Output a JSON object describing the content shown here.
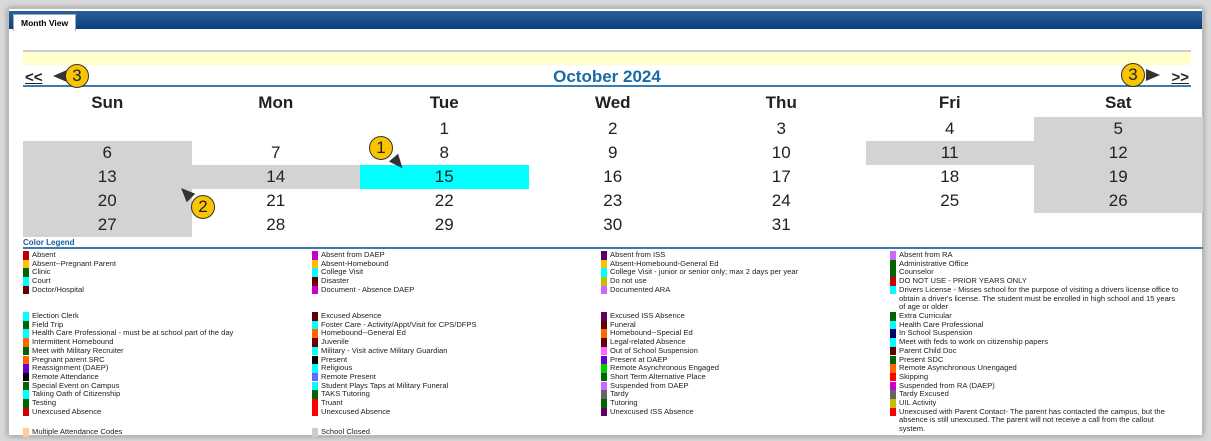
{
  "tab": {
    "label": "Month View"
  },
  "nav": {
    "prev": "<<",
    "next": ">>",
    "month": "October 2024"
  },
  "calendar": {
    "days": [
      "Sun",
      "Mon",
      "Tue",
      "Wed",
      "Thu",
      "Fri",
      "Sat"
    ],
    "weeks": [
      [
        {
          "d": ""
        },
        {
          "d": ""
        },
        {
          "d": "1"
        },
        {
          "d": "2"
        },
        {
          "d": "3"
        },
        {
          "d": "4"
        },
        {
          "d": "5",
          "s": "closed"
        }
      ],
      [
        {
          "d": "6",
          "s": "closed"
        },
        {
          "d": "7"
        },
        {
          "d": "8"
        },
        {
          "d": "9"
        },
        {
          "d": "10"
        },
        {
          "d": "11",
          "s": "closed"
        },
        {
          "d": "12",
          "s": "closed"
        }
      ],
      [
        {
          "d": "13",
          "s": "closed"
        },
        {
          "d": "14",
          "s": "closed"
        },
        {
          "d": "15",
          "s": "selected"
        },
        {
          "d": "16"
        },
        {
          "d": "17"
        },
        {
          "d": "18"
        },
        {
          "d": "19",
          "s": "closed"
        }
      ],
      [
        {
          "d": "20",
          "s": "closed"
        },
        {
          "d": "21"
        },
        {
          "d": "22"
        },
        {
          "d": "23"
        },
        {
          "d": "24"
        },
        {
          "d": "25"
        },
        {
          "d": "26",
          "s": "closed"
        }
      ],
      [
        {
          "d": "27",
          "s": "closed"
        },
        {
          "d": "28"
        },
        {
          "d": "29"
        },
        {
          "d": "30"
        },
        {
          "d": "31"
        },
        {
          "d": ""
        },
        {
          "d": ""
        }
      ]
    ],
    "colors": {
      "closed": "#d3d3d3",
      "selected": "#00ffff"
    }
  },
  "callouts": [
    "1",
    "2",
    "3",
    "3"
  ],
  "legend": {
    "title": "Color Legend",
    "groups": [
      [
        [
          [
            "Absent",
            "#c00000"
          ],
          [
            "Absent--Pregnant Parent",
            "#ffc000"
          ],
          [
            "Clinic",
            "#006400"
          ],
          [
            "Court",
            "#00ffff"
          ],
          [
            "Doctor/Hospital",
            "#600000"
          ]
        ],
        [
          [
            "Absent from DAEP",
            "#cc00cc"
          ],
          [
            "Absent-Homebound",
            "#ffc000"
          ],
          [
            "College Visit",
            "#00ffff"
          ],
          [
            "Disaster",
            "#600000"
          ],
          [
            "Document - Absence DAEP",
            "#cc00cc"
          ]
        ],
        [
          [
            "Absent from ISS",
            "#600060"
          ],
          [
            "Absent-Homebound-General Ed",
            "#ffc000"
          ],
          [
            "College Visit - junior or senior only; max 2 days per year",
            "#00ffff"
          ],
          [
            "Do not use",
            "#c0c000"
          ],
          [
            "Documented ARA",
            "#cc66ff"
          ]
        ],
        [
          [
            "Absent from RA",
            "#cc66ff"
          ],
          [
            "Administrative Office",
            "#006400"
          ],
          [
            "Counselor",
            "#006400"
          ],
          [
            "DO NOT USE - PRIOR YEARS ONLY",
            "#cc0000"
          ],
          [
            "Drivers License - Misses school for the purpose of visiting a drivers license office to obtain a driver's license. The student must be enrolled in high school and 15 years of age or older",
            "#00ffff"
          ]
        ]
      ],
      [
        [
          [
            "Election Clerk",
            "#00ffff"
          ],
          [
            "Field Trip",
            "#006400"
          ],
          [
            "Health Care Professional - must be at school part of the day",
            "#00ffff"
          ],
          [
            "Intermittent Homebound",
            "#ff6600"
          ],
          [
            "Meet with Military Recruiter",
            "#006400"
          ],
          [
            "Pregnant parent SRC",
            "#ff6600"
          ],
          [
            "Reassignment (DAEP)",
            "#6600cc"
          ],
          [
            "Remote Attendance",
            "#000000"
          ],
          [
            "Special Event on Campus",
            "#006400"
          ],
          [
            "Taking Oath of Citizenship",
            "#00ffff"
          ],
          [
            "Testing",
            "#006400"
          ],
          [
            "Unexcused Absence",
            "#cc0000"
          ]
        ],
        [
          [
            "Excused Absence",
            "#600000"
          ],
          [
            "Foster Care - Activity/Appt/Visit for CPS/DFPS",
            "#00ffff"
          ],
          [
            "Homebound--General Ed",
            "#ff6600"
          ],
          [
            "Juvenile",
            "#600000"
          ],
          [
            "Military - Visit active Military Guardian",
            "#00ffff"
          ],
          [
            "Present",
            "#000000"
          ],
          [
            "Religious",
            "#00ffff"
          ],
          [
            "Remote Present",
            "#6666ff"
          ],
          [
            "Student Plays Taps at Military Funeral",
            "#00ffff"
          ],
          [
            "TAKS Tutoring",
            "#006400"
          ],
          [
            "Truant",
            "#ff0000"
          ],
          [
            "Unexcused Absence",
            "#ff0000"
          ]
        ],
        [
          [
            "Excused ISS Absence",
            "#600060"
          ],
          [
            "Funeral",
            "#600000"
          ],
          [
            "Homebound--Special Ed",
            "#ff6600"
          ],
          [
            "Legal-related Absence",
            "#600000"
          ],
          [
            "Out of School Suspension",
            "#ff66ff"
          ],
          [
            "Present at DAEP",
            "#6600cc"
          ],
          [
            "Remote Asynchronous Engaged",
            "#00cc00"
          ],
          [
            "Short Term Alternative Place",
            "#006400"
          ],
          [
            "Suspended from DAEP",
            "#cc66ff"
          ],
          [
            "Tardy",
            "#666666"
          ],
          [
            "Tutoring",
            "#006400"
          ],
          [
            "Unexcused ISS Absence",
            "#600060"
          ]
        ],
        [
          [
            "Extra Curricular",
            "#006400"
          ],
          [
            "Health Care Professional",
            "#00ffff"
          ],
          [
            "In School Suspension",
            "#000066"
          ],
          [
            "Meet with feds to work on citizenship papers",
            "#00ffff"
          ],
          [
            "Parent Child Doc",
            "#600000"
          ],
          [
            "Present SDC",
            "#006400"
          ],
          [
            "Remote Asynchronous Unengaged",
            "#ff6600"
          ],
          [
            "Skipping",
            "#ff0000"
          ],
          [
            "Suspended from RA (DAEP)",
            "#cc00cc"
          ],
          [
            "Tardy Excused",
            "#666666"
          ],
          [
            "UIL Activity",
            "#c0c000"
          ],
          [
            "Unexcused with Parent Contact- The parent has contacted the campus, but the absence is still unexcused. The parent will not receive a call from the callout system.",
            "#ff0000"
          ]
        ]
      ],
      [
        [
          [
            "Multiple Attendance Codes",
            "#ffcc99"
          ]
        ],
        [
          [
            "School Closed",
            "#cccccc"
          ]
        ]
      ]
    ]
  }
}
